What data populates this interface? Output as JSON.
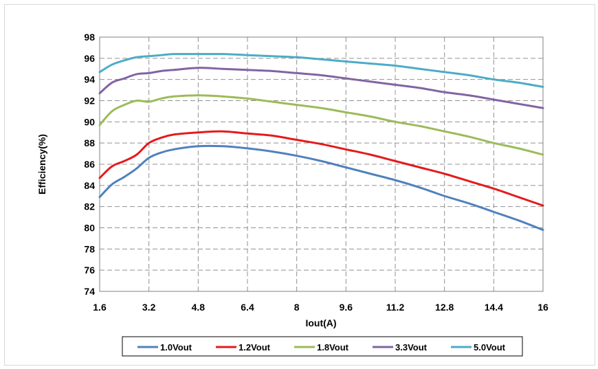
{
  "chart_data": {
    "type": "line",
    "xlabel": "Iout(A)",
    "ylabel": "Efficiency(%)",
    "xlim": [
      1.6,
      16
    ],
    "ylim": [
      74,
      98
    ],
    "x_ticks": [
      "1.6",
      "3.2",
      "4.8",
      "6.4",
      "8",
      "9.6",
      "11.2",
      "12.8",
      "14.4",
      "16"
    ],
    "y_ticks": [
      "98",
      "96",
      "94",
      "92",
      "90",
      "88",
      "86",
      "84",
      "82",
      "80",
      "78",
      "76",
      "74"
    ],
    "grid": true,
    "legend_position": "bottom",
    "series": [
      {
        "name": "1.0Vout",
        "color": "#4F81BD",
        "points": [
          [
            1.6,
            82.9
          ],
          [
            2.0,
            84.1
          ],
          [
            2.4,
            84.8
          ],
          [
            2.8,
            85.6
          ],
          [
            3.2,
            86.6
          ],
          [
            3.6,
            87.1
          ],
          [
            4.0,
            87.4
          ],
          [
            4.8,
            87.7
          ],
          [
            5.6,
            87.7
          ],
          [
            6.4,
            87.5
          ],
          [
            7.2,
            87.2
          ],
          [
            8.0,
            86.8
          ],
          [
            8.8,
            86.3
          ],
          [
            9.6,
            85.7
          ],
          [
            10.4,
            85.1
          ],
          [
            11.2,
            84.5
          ],
          [
            12.0,
            83.8
          ],
          [
            12.8,
            83.0
          ],
          [
            13.6,
            82.3
          ],
          [
            14.4,
            81.5
          ],
          [
            15.2,
            80.7
          ],
          [
            16.0,
            79.8
          ]
        ]
      },
      {
        "name": "1.2Vout",
        "color": "#E41A1C",
        "points": [
          [
            1.6,
            84.7
          ],
          [
            2.0,
            85.8
          ],
          [
            2.4,
            86.3
          ],
          [
            2.8,
            86.9
          ],
          [
            3.2,
            88.0
          ],
          [
            3.6,
            88.5
          ],
          [
            4.0,
            88.8
          ],
          [
            4.8,
            89.0
          ],
          [
            5.6,
            89.1
          ],
          [
            6.4,
            88.9
          ],
          [
            7.2,
            88.7
          ],
          [
            8.0,
            88.3
          ],
          [
            8.8,
            87.9
          ],
          [
            9.6,
            87.4
          ],
          [
            10.4,
            86.9
          ],
          [
            11.2,
            86.3
          ],
          [
            12.0,
            85.7
          ],
          [
            12.8,
            85.1
          ],
          [
            13.6,
            84.4
          ],
          [
            14.4,
            83.7
          ],
          [
            15.2,
            82.9
          ],
          [
            16.0,
            82.1
          ]
        ]
      },
      {
        "name": "1.8Vout",
        "color": "#9BBB59",
        "points": [
          [
            1.6,
            89.7
          ],
          [
            2.0,
            91.0
          ],
          [
            2.4,
            91.6
          ],
          [
            2.8,
            92.0
          ],
          [
            3.2,
            91.9
          ],
          [
            3.6,
            92.2
          ],
          [
            4.0,
            92.4
          ],
          [
            4.8,
            92.5
          ],
          [
            5.6,
            92.4
          ],
          [
            6.4,
            92.2
          ],
          [
            7.2,
            91.9
          ],
          [
            8.0,
            91.6
          ],
          [
            8.8,
            91.3
          ],
          [
            9.6,
            90.9
          ],
          [
            10.4,
            90.5
          ],
          [
            11.2,
            90.0
          ],
          [
            12.0,
            89.6
          ],
          [
            12.8,
            89.1
          ],
          [
            13.6,
            88.6
          ],
          [
            14.4,
            88.0
          ],
          [
            15.2,
            87.5
          ],
          [
            16.0,
            86.9
          ]
        ]
      },
      {
        "name": "3.3Vout",
        "color": "#8064A2",
        "points": [
          [
            1.6,
            92.7
          ],
          [
            2.0,
            93.7
          ],
          [
            2.4,
            94.1
          ],
          [
            2.8,
            94.5
          ],
          [
            3.2,
            94.6
          ],
          [
            3.6,
            94.8
          ],
          [
            4.0,
            94.9
          ],
          [
            4.8,
            95.1
          ],
          [
            5.6,
            95.0
          ],
          [
            6.4,
            94.9
          ],
          [
            7.2,
            94.8
          ],
          [
            8.0,
            94.6
          ],
          [
            8.8,
            94.4
          ],
          [
            9.6,
            94.1
          ],
          [
            10.4,
            93.8
          ],
          [
            11.2,
            93.5
          ],
          [
            12.0,
            93.2
          ],
          [
            12.8,
            92.8
          ],
          [
            13.6,
            92.5
          ],
          [
            14.4,
            92.1
          ],
          [
            15.2,
            91.7
          ],
          [
            16.0,
            91.3
          ]
        ]
      },
      {
        "name": "5.0Vout",
        "color": "#4BACC6",
        "points": [
          [
            1.6,
            94.7
          ],
          [
            2.0,
            95.4
          ],
          [
            2.4,
            95.8
          ],
          [
            2.8,
            96.1
          ],
          [
            3.2,
            96.2
          ],
          [
            3.6,
            96.3
          ],
          [
            4.0,
            96.4
          ],
          [
            4.8,
            96.4
          ],
          [
            5.6,
            96.4
          ],
          [
            6.4,
            96.3
          ],
          [
            7.2,
            96.2
          ],
          [
            8.0,
            96.1
          ],
          [
            8.8,
            95.9
          ],
          [
            9.6,
            95.7
          ],
          [
            10.4,
            95.5
          ],
          [
            11.2,
            95.3
          ],
          [
            12.0,
            95.0
          ],
          [
            12.8,
            94.7
          ],
          [
            13.6,
            94.4
          ],
          [
            14.4,
            94.0
          ],
          [
            15.2,
            93.7
          ],
          [
            16.0,
            93.3
          ]
        ]
      }
    ]
  }
}
